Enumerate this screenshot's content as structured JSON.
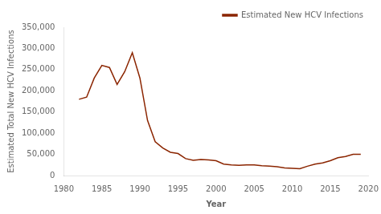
{
  "chart_data": {
    "type": "line",
    "xlabel": "Year",
    "ylabel": "Estimated Total New HCV Infections",
    "x": [
      1982,
      1983,
      1984,
      1985,
      1986,
      1987,
      1988,
      1989,
      1990,
      1991,
      1992,
      1993,
      1994,
      1995,
      1996,
      1997,
      1998,
      1999,
      2000,
      2001,
      2002,
      2003,
      2004,
      2005,
      2006,
      2007,
      2008,
      2009,
      2010,
      2011,
      2012,
      2013,
      2014,
      2015,
      2016,
      2017,
      2018,
      2019
    ],
    "series": [
      {
        "name": "Estimated New HCV Infections",
        "color": "#8B2500",
        "values": [
          180000,
          185000,
          230000,
          260000,
          255000,
          215000,
          245000,
          290000,
          230000,
          130000,
          80000,
          65000,
          55000,
          52000,
          40000,
          36000,
          38000,
          37000,
          35000,
          27000,
          25000,
          24000,
          25000,
          25000,
          23000,
          22000,
          21000,
          18000,
          17000,
          16000,
          22000,
          27000,
          30000,
          35000,
          42000,
          45000,
          50000,
          50000
        ]
      }
    ],
    "xlim": [
      1980,
      2020
    ],
    "ylim": [
      0,
      350000
    ],
    "xticks": [
      1980,
      1985,
      1990,
      1995,
      2000,
      2005,
      2010,
      2015,
      2020
    ],
    "yticks": [
      0,
      {
        "value": 50000,
        "label": "50,000"
      },
      {
        "value": 100000,
        "label": "100,000"
      },
      {
        "value": 150000,
        "label": "150,000"
      },
      {
        "value": 200000,
        "label": "200,000"
      },
      {
        "value": 250000,
        "label": "250,000"
      },
      {
        "value": 300000,
        "label": "300,000"
      },
      {
        "value": 350000,
        "label": "350,000"
      }
    ],
    "grid": false,
    "legend": "upper right"
  }
}
